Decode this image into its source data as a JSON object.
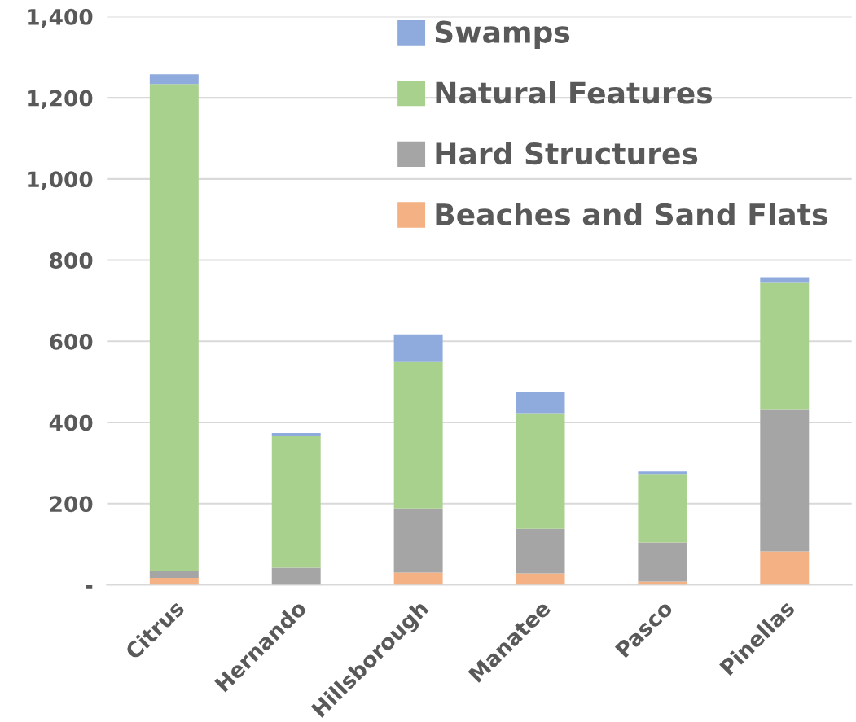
{
  "chart_data": {
    "type": "bar",
    "stacked": true,
    "categories": [
      "Citrus",
      "Hernando",
      "Hillsborough",
      "Manatee",
      "Pasco",
      "Pinellas"
    ],
    "series": [
      {
        "name": "Beaches and Sand Flats",
        "color": "#f4b183",
        "values": [
          17,
          0,
          30,
          28,
          8,
          82
        ]
      },
      {
        "name": "Hard Structures",
        "color": "#a5a5a5",
        "values": [
          17,
          42,
          158,
          110,
          96,
          349
        ]
      },
      {
        "name": "Natural Features",
        "color": "#a9d18e",
        "values": [
          1200,
          324,
          361,
          285,
          169,
          313
        ]
      },
      {
        "name": "Swamps",
        "color": "#8faadc",
        "values": [
          24,
          8,
          68,
          52,
          6,
          14
        ]
      }
    ],
    "ylim": [
      0,
      1400
    ],
    "yticks": [
      {
        "value": 0,
        "label": "-"
      },
      {
        "value": 200,
        "label": "200"
      },
      {
        "value": 400,
        "label": "400"
      },
      {
        "value": 600,
        "label": "600"
      },
      {
        "value": 800,
        "label": "800"
      },
      {
        "value": 1000,
        "label": "1,000"
      },
      {
        "value": 1200,
        "label": "1,200"
      },
      {
        "value": 1400,
        "label": "1,400"
      }
    ],
    "grid": "y",
    "legend": "top"
  }
}
